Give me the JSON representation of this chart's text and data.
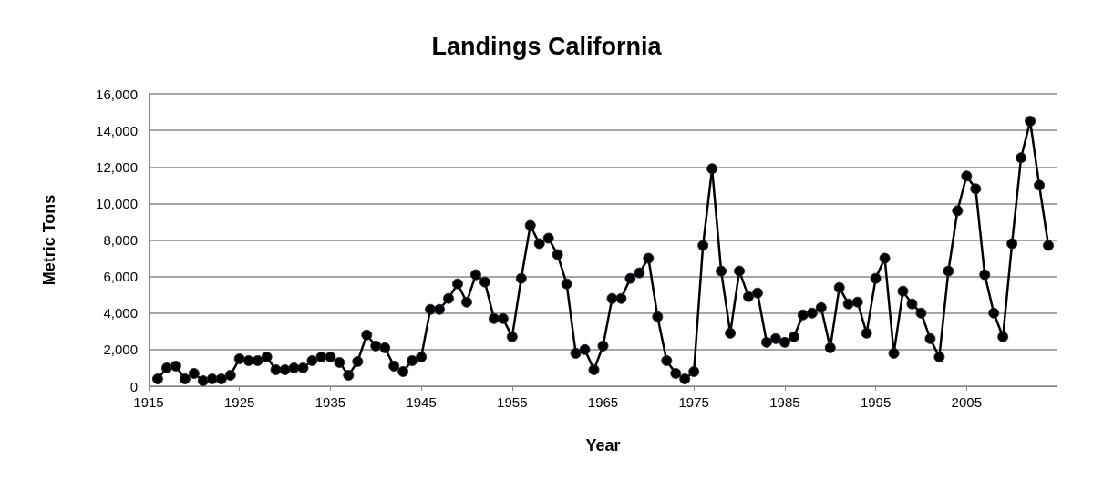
{
  "chart_data": {
    "type": "line",
    "title": "Landings California",
    "xlabel": "Year",
    "ylabel": "Metric Tons",
    "x": [
      1916,
      1917,
      1918,
      1919,
      1920,
      1921,
      1922,
      1923,
      1924,
      1925,
      1926,
      1927,
      1928,
      1929,
      1930,
      1931,
      1932,
      1933,
      1934,
      1935,
      1936,
      1937,
      1938,
      1939,
      1940,
      1941,
      1942,
      1943,
      1944,
      1945,
      1946,
      1947,
      1948,
      1949,
      1950,
      1951,
      1952,
      1953,
      1954,
      1955,
      1956,
      1957,
      1958,
      1959,
      1960,
      1961,
      1962,
      1963,
      1964,
      1965,
      1966,
      1967,
      1968,
      1969,
      1970,
      1971,
      1972,
      1973,
      1974,
      1975,
      1976,
      1977,
      1978,
      1979,
      1980,
      1981,
      1982,
      1983,
      1984,
      1985,
      1986,
      1987,
      1988,
      1989,
      1990,
      1991,
      1992,
      1993,
      1994,
      1995,
      1996,
      1997,
      1998,
      1999,
      2000,
      2001,
      2002,
      2003,
      2004,
      2005,
      2006,
      2007,
      2008,
      2009,
      2010,
      2011,
      2012,
      2013,
      2014
    ],
    "series": [
      {
        "color": "#000000",
        "values": [
          400,
          1000,
          1100,
          400,
          700,
          300,
          400,
          400,
          600,
          1500,
          1400,
          1400,
          1600,
          900,
          900,
          1000,
          1000,
          1400,
          1600,
          1600,
          1300,
          600,
          1350,
          2800,
          2200,
          2100,
          1100,
          800,
          1400,
          1600,
          4200,
          4200,
          4800,
          5600,
          4600,
          6100,
          5700,
          3700,
          3700,
          2700,
          5900,
          8800,
          7800,
          8100,
          7200,
          5600,
          1800,
          2000,
          900,
          2200,
          4800,
          4800,
          5900,
          6200,
          7000,
          3800,
          1400,
          700,
          400,
          800,
          7700,
          11900,
          6300,
          2900,
          6300,
          4900,
          5100,
          2400,
          2600,
          2400,
          2700,
          3900,
          4000,
          4300,
          2100,
          5400,
          4500,
          4600,
          2900,
          5900,
          7000,
          1800,
          5200,
          4500,
          4000,
          2600,
          1600,
          6300,
          9600,
          11500,
          10800,
          6100,
          4000,
          2700,
          7800,
          12500,
          14500,
          11000,
          7700
        ]
      }
    ],
    "xlim": [
      1915,
      2015
    ],
    "xticks": [
      1915,
      1925,
      1935,
      1945,
      1955,
      1965,
      1975,
      1985,
      1995,
      2005
    ],
    "ylim": [
      0,
      16000
    ],
    "yticks": [
      0,
      {
        "value": 2000,
        "label": "2,000"
      },
      {
        "value": 4000,
        "label": "4,000"
      },
      {
        "value": 6000,
        "label": "6,000"
      },
      {
        "value": 8000,
        "label": "8,000"
      },
      {
        "value": 10000,
        "label": "10,000"
      },
      {
        "value": 12000,
        "label": "12,000"
      },
      {
        "value": 14000,
        "label": "14,000"
      },
      {
        "value": 16000,
        "label": "16,000"
      }
    ],
    "grid": "y",
    "marker": "circle",
    "line_style": "solid"
  }
}
